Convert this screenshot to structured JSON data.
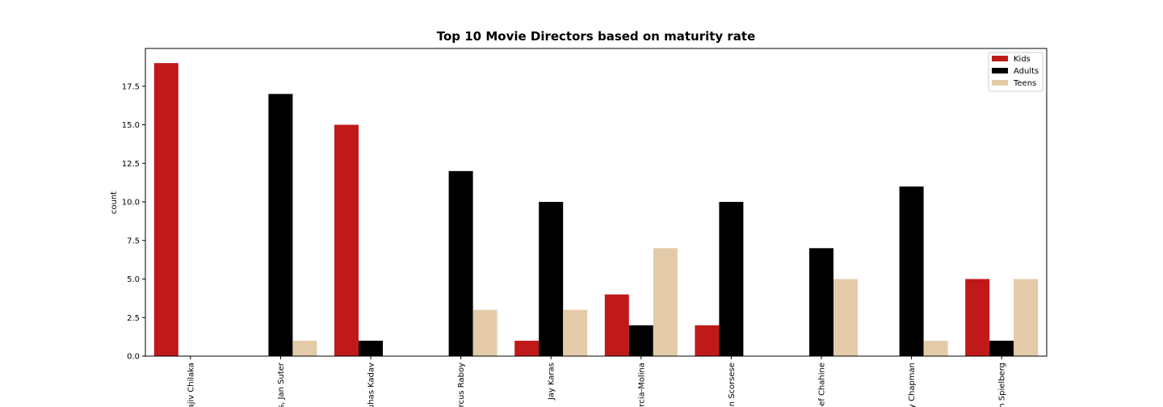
{
  "chart_data": {
    "type": "bar",
    "title": "Top 10 Movie Directors based on maturity rate",
    "xlabel": "",
    "ylabel": "count",
    "ylim": [
      0,
      19.95
    ],
    "yticks": [
      "0.0",
      "2.5",
      "5.0",
      "7.5",
      "10.0",
      "12.5",
      "15.0",
      "17.5"
    ],
    "categories": [
      "ajiv Chilaka",
      "s, Jan Suter",
      "uhas Kadav",
      "rcus Raboy",
      "Jay Karas",
      "rcia-Molina",
      "n Scorsese",
      "ef Chahine",
      "y Chapman",
      "n Spielberg"
    ],
    "series": [
      {
        "name": "Kids",
        "color": "#c0191a",
        "values": [
          19,
          0,
          15,
          0,
          1,
          4,
          2,
          0,
          0,
          5
        ]
      },
      {
        "name": "Adults",
        "color": "#000000",
        "values": [
          0,
          17,
          1,
          12,
          10,
          2,
          10,
          7,
          11,
          1
        ]
      },
      {
        "name": "Teens",
        "color": "#e3cba9",
        "values": [
          0,
          1,
          0,
          3,
          3,
          7,
          0,
          5,
          1,
          5
        ]
      }
    ],
    "legend_position": "top-right",
    "grid": false
  }
}
